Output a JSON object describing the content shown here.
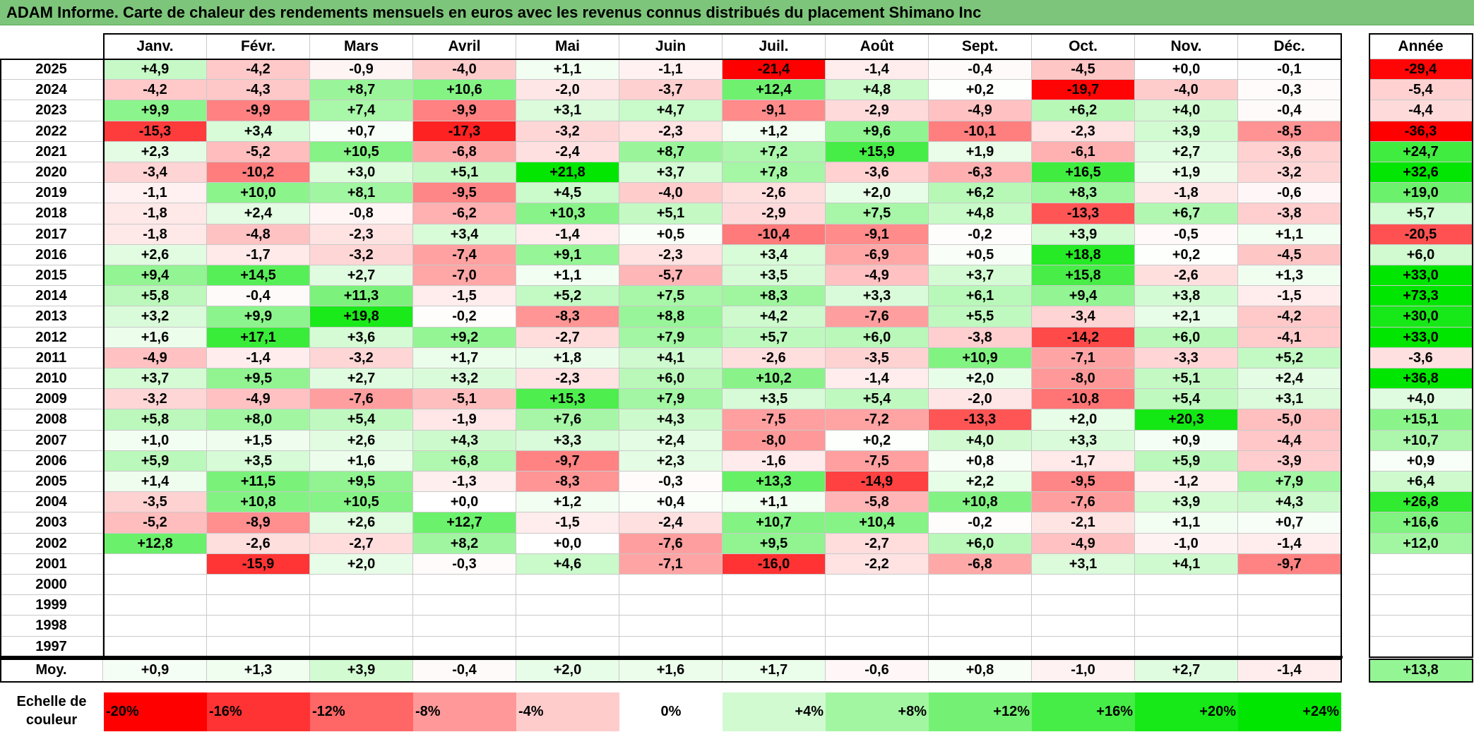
{
  "title": "ADAM Informe. Carte de chaleur des rendements mensuels en euros avec les revenus connus distribués du placement Shimano Inc",
  "chart_data": {
    "type": "heatmap",
    "title": "ADAM Informe. Carte de chaleur des rendements mensuels en euros avec les revenus connus distribués du placement Shimano Inc",
    "columns": [
      "Janv.",
      "Févr.",
      "Mars",
      "Avril",
      "Mai",
      "Juin",
      "Juil.",
      "Août",
      "Sept.",
      "Oct.",
      "Nov.",
      "Déc."
    ],
    "year_column_label": "Année",
    "avg_row_label": "Moy.",
    "rows": [
      {
        "year": "2025",
        "values": [
          "+4,9",
          "-4,2",
          "-0,9",
          "-4,0",
          "+1,1",
          "-1,1",
          "-21,4",
          "-1,4",
          "-0,4",
          "-4,5",
          "+0,0",
          "-0,1"
        ],
        "annual": "-29,4"
      },
      {
        "year": "2024",
        "values": [
          "-4,2",
          "-4,3",
          "+8,7",
          "+10,6",
          "-2,0",
          "-3,7",
          "+12,4",
          "+4,8",
          "+0,2",
          "-19,7",
          "-4,0",
          "-0,3"
        ],
        "annual": "-5,4"
      },
      {
        "year": "2023",
        "values": [
          "+9,9",
          "-9,9",
          "+7,4",
          "-9,9",
          "+3,1",
          "+4,7",
          "-9,1",
          "-2,9",
          "-4,9",
          "+6,2",
          "+4,0",
          "-0,4"
        ],
        "annual": "-4,4"
      },
      {
        "year": "2022",
        "values": [
          "-15,3",
          "+3,4",
          "+0,7",
          "-17,3",
          "-3,2",
          "-2,3",
          "+1,2",
          "+9,6",
          "-10,1",
          "-2,3",
          "+3,9",
          "-8,5"
        ],
        "annual": "-36,3"
      },
      {
        "year": "2021",
        "values": [
          "+2,3",
          "-5,2",
          "+10,5",
          "-6,8",
          "-2,4",
          "+8,7",
          "+7,2",
          "+15,9",
          "+1,9",
          "-6,1",
          "+2,7",
          "-3,6"
        ],
        "annual": "+24,7"
      },
      {
        "year": "2020",
        "values": [
          "-3,4",
          "-10,2",
          "+3,0",
          "+5,1",
          "+21,8",
          "+3,7",
          "+7,8",
          "-3,6",
          "-6,3",
          "+16,5",
          "+1,9",
          "-3,2"
        ],
        "annual": "+32,6"
      },
      {
        "year": "2019",
        "values": [
          "-1,1",
          "+10,0",
          "+8,1",
          "-9,5",
          "+4,5",
          "-4,0",
          "-2,6",
          "+2,0",
          "+6,2",
          "+8,3",
          "-1,8",
          "-0,6"
        ],
        "annual": "+19,0"
      },
      {
        "year": "2018",
        "values": [
          "-1,8",
          "+2,4",
          "-0,8",
          "-6,2",
          "+10,3",
          "+5,1",
          "-2,9",
          "+7,5",
          "+4,8",
          "-13,3",
          "+6,7",
          "-3,8"
        ],
        "annual": "+5,7"
      },
      {
        "year": "2017",
        "values": [
          "-1,8",
          "-4,8",
          "-2,3",
          "+3,4",
          "-1,4",
          "+0,5",
          "-10,4",
          "-9,1",
          "-0,2",
          "+3,9",
          "-0,5",
          "+1,1"
        ],
        "annual": "-20,5"
      },
      {
        "year": "2016",
        "values": [
          "+2,6",
          "-1,7",
          "-3,2",
          "-7,4",
          "+9,1",
          "-2,3",
          "+3,4",
          "-6,9",
          "+0,5",
          "+18,8",
          "+0,2",
          "-4,5"
        ],
        "annual": "+6,0"
      },
      {
        "year": "2015",
        "values": [
          "+9,4",
          "+14,5",
          "+2,7",
          "-7,0",
          "+1,1",
          "-5,7",
          "+3,5",
          "-4,9",
          "+3,7",
          "+15,8",
          "-2,6",
          "+1,3"
        ],
        "annual": "+33,0"
      },
      {
        "year": "2014",
        "values": [
          "+5,8",
          "-0,4",
          "+11,3",
          "-1,5",
          "+5,2",
          "+7,5",
          "+8,3",
          "+3,3",
          "+6,1",
          "+9,4",
          "+3,8",
          "-1,5"
        ],
        "annual": "+73,3"
      },
      {
        "year": "2013",
        "values": [
          "+3,2",
          "+9,9",
          "+19,8",
          "-0,2",
          "-8,3",
          "+8,8",
          "+4,2",
          "-7,6",
          "+5,5",
          "-3,4",
          "+2,1",
          "-4,2"
        ],
        "annual": "+30,0"
      },
      {
        "year": "2012",
        "values": [
          "+1,6",
          "+17,1",
          "+3,6",
          "+9,2",
          "-2,7",
          "+7,9",
          "+5,7",
          "+6,0",
          "-3,8",
          "-14,2",
          "+6,0",
          "-4,1"
        ],
        "annual": "+33,0"
      },
      {
        "year": "2011",
        "values": [
          "-4,9",
          "-1,4",
          "-3,2",
          "+1,7",
          "+1,8",
          "+4,1",
          "-2,6",
          "-3,5",
          "+10,9",
          "-7,1",
          "-3,3",
          "+5,2"
        ],
        "annual": "-3,6"
      },
      {
        "year": "2010",
        "values": [
          "+3,7",
          "+9,5",
          "+2,7",
          "+3,2",
          "-2,3",
          "+6,0",
          "+10,2",
          "-1,4",
          "+2,0",
          "-8,0",
          "+5,1",
          "+2,4"
        ],
        "annual": "+36,8"
      },
      {
        "year": "2009",
        "values": [
          "-3,2",
          "-4,9",
          "-7,6",
          "-5,1",
          "+15,3",
          "+7,9",
          "+3,5",
          "+5,4",
          "-2,0",
          "-10,8",
          "+5,4",
          "+3,1"
        ],
        "annual": "+4,0"
      },
      {
        "year": "2008",
        "values": [
          "+5,8",
          "+8,0",
          "+5,4",
          "-1,9",
          "+7,6",
          "+4,3",
          "-7,5",
          "-7,2",
          "-13,3",
          "+2,0",
          "+20,3",
          "-5,0"
        ],
        "annual": "+15,1"
      },
      {
        "year": "2007",
        "values": [
          "+1,0",
          "+1,5",
          "+2,6",
          "+4,3",
          "+3,3",
          "+2,4",
          "-8,0",
          "+0,2",
          "+4,0",
          "+3,3",
          "+0,9",
          "-4,4"
        ],
        "annual": "+10,7"
      },
      {
        "year": "2006",
        "values": [
          "+5,9",
          "+3,5",
          "+1,6",
          "+6,8",
          "-9,7",
          "+2,3",
          "-1,6",
          "-7,5",
          "+0,8",
          "-1,7",
          "+5,9",
          "-3,9"
        ],
        "annual": "+0,9"
      },
      {
        "year": "2005",
        "values": [
          "+1,4",
          "+11,5",
          "+9,5",
          "-1,3",
          "-8,3",
          "-0,3",
          "+13,3",
          "-14,9",
          "+2,2",
          "-9,5",
          "-1,2",
          "+7,9"
        ],
        "annual": "+6,4"
      },
      {
        "year": "2004",
        "values": [
          "-3,5",
          "+10,8",
          "+10,5",
          "+0,0",
          "+1,2",
          "+0,4",
          "+1,1",
          "-5,8",
          "+10,8",
          "-7,6",
          "+3,9",
          "+4,3"
        ],
        "annual": "+26,8"
      },
      {
        "year": "2003",
        "values": [
          "-5,2",
          "-8,9",
          "+2,6",
          "+12,7",
          "-1,5",
          "-2,4",
          "+10,7",
          "+10,4",
          "-0,2",
          "-2,1",
          "+1,1",
          "+0,7"
        ],
        "annual": "+16,6"
      },
      {
        "year": "2002",
        "values": [
          "+12,8",
          "-2,6",
          "-2,7",
          "+8,2",
          "+0,0",
          "-7,6",
          "+9,5",
          "-2,7",
          "+6,0",
          "-4,9",
          "-1,0",
          "-1,4"
        ],
        "annual": "+12,0"
      },
      {
        "year": "2001",
        "values": [
          "",
          "-15,9",
          "+2,0",
          "-0,3",
          "+4,6",
          "-7,1",
          "-16,0",
          "-2,2",
          "-6,8",
          "+3,1",
          "+4,1",
          "-9,7"
        ],
        "annual": ""
      },
      {
        "year": "2000",
        "values": [
          "",
          "",
          "",
          "",
          "",
          "",
          "",
          "",
          "",
          "",
          "",
          ""
        ],
        "annual": ""
      },
      {
        "year": "1999",
        "values": [
          "",
          "",
          "",
          "",
          "",
          "",
          "",
          "",
          "",
          "",
          "",
          ""
        ],
        "annual": ""
      },
      {
        "year": "1998",
        "values": [
          "",
          "",
          "",
          "",
          "",
          "",
          "",
          "",
          "",
          "",
          "",
          ""
        ],
        "annual": ""
      },
      {
        "year": "1997",
        "values": [
          "",
          "",
          "",
          "",
          "",
          "",
          "",
          "",
          "",
          "",
          "",
          ""
        ],
        "annual": ""
      }
    ],
    "averages": [
      "+0,9",
      "+1,3",
      "+3,9",
      "-0,4",
      "+2,0",
      "+1,6",
      "+1,7",
      "-0,6",
      "+0,8",
      "-1,0",
      "+2,7",
      "-1,4"
    ],
    "average_annual": "+13,8",
    "scale": {
      "label_line1": "Echelle de",
      "label_line2": "couleur",
      "items": [
        {
          "label": "-20%",
          "value": -20
        },
        {
          "label": "-16%",
          "value": -16
        },
        {
          "label": "-12%",
          "value": -12
        },
        {
          "label": "-8%",
          "value": -8
        },
        {
          "label": "-4%",
          "value": -4
        },
        {
          "label": "0%",
          "value": 0
        },
        {
          "label": "+4%",
          "value": 4
        },
        {
          "label": "+8%",
          "value": 8
        },
        {
          "label": "+12%",
          "value": 12
        },
        {
          "label": "+16%",
          "value": 16
        },
        {
          "label": "+20%",
          "value": 20
        },
        {
          "label": "+24%",
          "value": 24
        }
      ]
    },
    "colors": {
      "negative_max": "#ff0000",
      "neutral": "#ffffff",
      "positive_max": "#00e600"
    }
  }
}
